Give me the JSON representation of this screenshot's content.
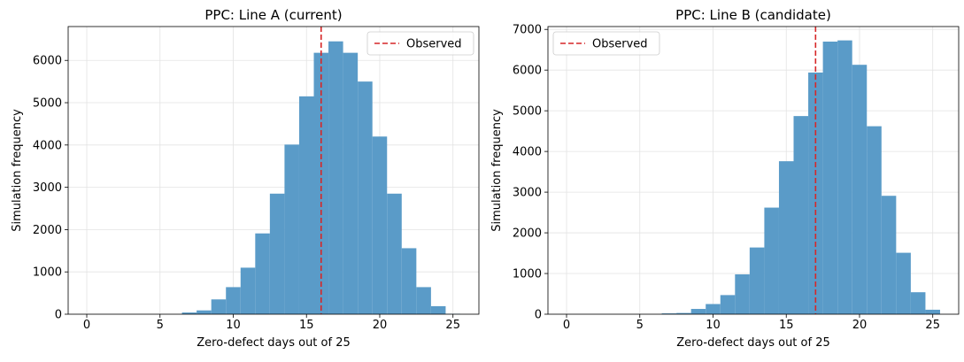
{
  "chart_data": [
    {
      "type": "bar",
      "title": "PPC: Line A (current)",
      "xlabel": "Zero-defect days out of 25",
      "ylabel": "Simulation frequency",
      "xlim": [
        -1.27,
        26.77
      ],
      "ylim": [
        0,
        6800
      ],
      "xticks": [
        0,
        5,
        10,
        15,
        20,
        25
      ],
      "yticks": [
        0,
        1000,
        2000,
        3000,
        4000,
        5000,
        6000
      ],
      "grid": true,
      "bar_color": "#5a9bc8",
      "observed_line": {
        "label": "Observed",
        "x": 16,
        "color": "#d62728",
        "style": "dashed"
      },
      "legend_position": "top-right",
      "bins": [
        {
          "x0": 6.5,
          "x1": 7.5,
          "value": 40
        },
        {
          "x0": 7.5,
          "x1": 8.5,
          "value": 90
        },
        {
          "x0": 8.5,
          "x1": 9.5,
          "value": 350
        },
        {
          "x0": 9.5,
          "x1": 10.5,
          "value": 640
        },
        {
          "x0": 10.5,
          "x1": 11.5,
          "value": 1100
        },
        {
          "x0": 11.5,
          "x1": 12.5,
          "value": 1910
        },
        {
          "x0": 12.5,
          "x1": 13.5,
          "value": 2850
        },
        {
          "x0": 13.5,
          "x1": 14.5,
          "value": 4010
        },
        {
          "x0": 14.5,
          "x1": 15.5,
          "value": 5150
        },
        {
          "x0": 15.5,
          "x1": 16.5,
          "value": 6180
        },
        {
          "x0": 16.5,
          "x1": 17.5,
          "value": 6450
        },
        {
          "x0": 17.5,
          "x1": 18.5,
          "value": 6180
        },
        {
          "x0": 18.5,
          "x1": 19.5,
          "value": 5500
        },
        {
          "x0": 19.5,
          "x1": 20.5,
          "value": 4200
        },
        {
          "x0": 20.5,
          "x1": 21.5,
          "value": 2850
        },
        {
          "x0": 21.5,
          "x1": 22.5,
          "value": 1560
        },
        {
          "x0": 22.5,
          "x1": 23.5,
          "value": 640
        },
        {
          "x0": 23.5,
          "x1": 24.5,
          "value": 190
        },
        {
          "x0": 24.5,
          "x1": 25.5,
          "value": 10
        }
      ]
    },
    {
      "type": "bar",
      "title": "PPC: Line B (candidate)",
      "xlabel": "Zero-defect days out of 25",
      "ylabel": "Simulation frequency",
      "xlim": [
        -1.27,
        26.77
      ],
      "ylim": [
        0,
        7070
      ],
      "xticks": [
        0,
        5,
        10,
        15,
        20,
        25
      ],
      "yticks": [
        0,
        1000,
        2000,
        3000,
        4000,
        5000,
        6000,
        7000
      ],
      "grid": true,
      "bar_color": "#5a9bc8",
      "observed_line": {
        "label": "Observed",
        "x": 17,
        "color": "#d62728",
        "style": "dashed"
      },
      "legend_position": "top-left",
      "bins": [
        {
          "x0": 6.5,
          "x1": 7.5,
          "value": 20
        },
        {
          "x0": 7.5,
          "x1": 8.5,
          "value": 30
        },
        {
          "x0": 8.5,
          "x1": 9.5,
          "value": 130
        },
        {
          "x0": 9.5,
          "x1": 10.5,
          "value": 250
        },
        {
          "x0": 10.5,
          "x1": 11.5,
          "value": 470
        },
        {
          "x0": 11.5,
          "x1": 12.5,
          "value": 980
        },
        {
          "x0": 12.5,
          "x1": 13.5,
          "value": 1640
        },
        {
          "x0": 13.5,
          "x1": 14.5,
          "value": 2620
        },
        {
          "x0": 14.5,
          "x1": 15.5,
          "value": 3760
        },
        {
          "x0": 15.5,
          "x1": 16.5,
          "value": 4870
        },
        {
          "x0": 16.5,
          "x1": 17.5,
          "value": 5940
        },
        {
          "x0": 17.5,
          "x1": 18.5,
          "value": 6700
        },
        {
          "x0": 18.5,
          "x1": 19.5,
          "value": 6730
        },
        {
          "x0": 19.5,
          "x1": 20.5,
          "value": 6130
        },
        {
          "x0": 20.5,
          "x1": 21.5,
          "value": 4620
        },
        {
          "x0": 21.5,
          "x1": 22.5,
          "value": 2910
        },
        {
          "x0": 22.5,
          "x1": 23.5,
          "value": 1510
        },
        {
          "x0": 23.5,
          "x1": 24.5,
          "value": 540
        },
        {
          "x0": 24.5,
          "x1": 25.5,
          "value": 110
        }
      ]
    }
  ]
}
